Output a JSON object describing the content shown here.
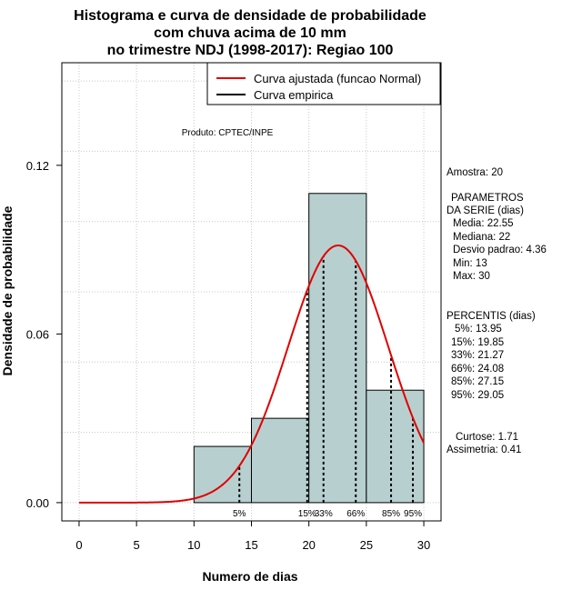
{
  "chart_data": {
    "type": "histogram",
    "title_lines": [
      "Histograma e curva de densidade de probabilidade",
      "com chuva acima de 10 mm",
      "no trimestre NDJ (1998-2017): Regiao 100"
    ],
    "xlabel": "Numero de dias",
    "ylabel": "Densidade de probabilidade",
    "xlim": [
      -1.5,
      31.5
    ],
    "ylim": [
      -0.0065,
      0.1565
    ],
    "x_ticks": [
      0,
      5,
      10,
      15,
      20,
      25,
      30
    ],
    "y_ticks": [
      0.0,
      0.06,
      0.12
    ],
    "y_tick_labels": [
      "0.00",
      "0.06",
      "0.12"
    ],
    "grid": true,
    "legend_placement": "top-right",
    "bins": [
      {
        "x0": 10,
        "x1": 15,
        "density": 0.02
      },
      {
        "x0": 15,
        "x1": 20,
        "density": 0.03
      },
      {
        "x0": 20,
        "x1": 25,
        "density": 0.11
      },
      {
        "x0": 25,
        "x1": 30,
        "density": 0.04
      }
    ],
    "bar_color": "#b8cfcf",
    "fitted_curve": {
      "name": "Curva ajustada (funcao Normal)",
      "color": "#e00000",
      "mean": 22.55,
      "sd": 4.36,
      "x_range": [
        0,
        30
      ]
    },
    "empirical_curve": {
      "name": "Curva empirica",
      "color": "#000000"
    },
    "percentile_lines": [
      {
        "label": "5%",
        "x": 13.95
      },
      {
        "label": "15%",
        "x": 19.85
      },
      {
        "label": "33%",
        "x": 21.27
      },
      {
        "label": "66%",
        "x": 24.08
      },
      {
        "label": "85%",
        "x": 27.15
      },
      {
        "label": "95%",
        "x": 29.05
      }
    ],
    "annotation": "Produto: CPTEC/INPE"
  },
  "side_panel": {
    "amostra": "Amostra: 20",
    "param_header_1": "PARAMETROS",
    "param_header_2": "DA SERIE (dias)",
    "params": [
      "Media: 22.55",
      "Mediana: 22",
      "Desvio padrao: 4.36",
      "Min: 13",
      "Max: 30"
    ],
    "percentis_header": "PERCENTIS (dias)",
    "percentis": [
      "5%: 13.95",
      "15%: 19.85",
      "33%: 21.27",
      "66%: 24.08",
      "85%: 27.15",
      "95%: 29.05"
    ],
    "curtose": "Curtose: 1.71",
    "assimetria": "Assimetria: 0.41"
  }
}
